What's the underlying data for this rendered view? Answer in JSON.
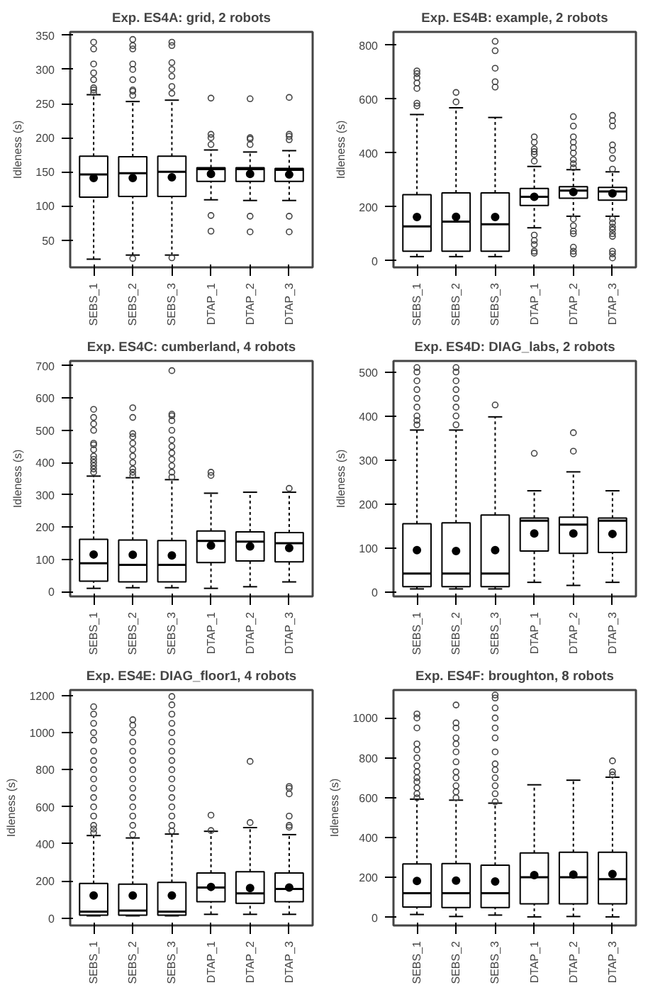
{
  "chart_data": [
    {
      "type": "box",
      "title": "Exp. ES4A: grid, 2 robots",
      "ylabel": "Idleness (s)",
      "categories": [
        "SEBS_1",
        "SEBS_2",
        "SEBS_3",
        "DTAP_1",
        "DTAP_2",
        "DTAP_3"
      ],
      "ylim": [
        10,
        355
      ],
      "yticks": [
        50,
        100,
        150,
        200,
        250,
        300,
        350
      ],
      "grid": false,
      "boxes": [
        {
          "low": 22,
          "q1": 113,
          "median": 146,
          "q3": 173,
          "high": 263,
          "mean": 141,
          "outliers": [
            266,
            270,
            273,
            285,
            295,
            308,
            330,
            340
          ]
        },
        {
          "low": 28,
          "q1": 114,
          "median": 148,
          "q3": 172,
          "high": 253,
          "mean": 141,
          "outliers": [
            23,
            262,
            268,
            270,
            285,
            300,
            308,
            330,
            335,
            344
          ]
        },
        {
          "low": 28,
          "q1": 114,
          "median": 150,
          "q3": 173,
          "high": 255,
          "mean": 142,
          "outliers": [
            24,
            265,
            275,
            290,
            300,
            310,
            335,
            340
          ]
        },
        {
          "low": 109,
          "q1": 136,
          "median": 154,
          "q3": 156,
          "high": 182,
          "mean": 147,
          "outliers": [
            63,
            86,
            190,
            200,
            205,
            258
          ]
        },
        {
          "low": 108,
          "q1": 136,
          "median": 154,
          "q3": 156,
          "high": 179,
          "mean": 147,
          "outliers": [
            62,
            85,
            190,
            198,
            200,
            257
          ]
        },
        {
          "low": 108,
          "q1": 136,
          "median": 153,
          "q3": 155,
          "high": 181,
          "mean": 146,
          "outliers": [
            62,
            85,
            197,
            202,
            205,
            259
          ]
        }
      ]
    },
    {
      "type": "box",
      "title": "Exp. ES4B: example, 2 robots",
      "ylabel": "Idleness (s)",
      "categories": [
        "SEBS_1",
        "SEBS_2",
        "SEBS_3",
        "DTAP_1",
        "DTAP_2",
        "DTAP_3"
      ],
      "ylim": [
        -25,
        850
      ],
      "yticks": [
        0,
        200,
        400,
        600,
        800
      ],
      "grid": false,
      "boxes": [
        {
          "low": 15,
          "q1": 35,
          "median": 127,
          "q3": 245,
          "high": 543,
          "mean": 162,
          "outliers": [
            575,
            585,
            640,
            660,
            680,
            695,
            705
          ]
        },
        {
          "low": 15,
          "q1": 35,
          "median": 145,
          "q3": 252,
          "high": 568,
          "mean": 163,
          "outliers": [
            590,
            625
          ]
        },
        {
          "low": 15,
          "q1": 35,
          "median": 135,
          "q3": 252,
          "high": 532,
          "mean": 162,
          "outliers": [
            645,
            665,
            715,
            780,
            815
          ]
        },
        {
          "low": 122,
          "q1": 205,
          "median": 237,
          "q3": 268,
          "high": 350,
          "mean": 237,
          "outliers": [
            28,
            35,
            60,
            75,
            95,
            370,
            395,
            405,
            415,
            440,
            460
          ]
        },
        {
          "low": 165,
          "q1": 232,
          "median": 260,
          "q3": 275,
          "high": 338,
          "mean": 255,
          "outliers": [
            25,
            35,
            50,
            100,
            110,
            130,
            155,
            345,
            360,
            375,
            400,
            420,
            440,
            460,
            500,
            535
          ]
        },
        {
          "low": 165,
          "q1": 225,
          "median": 257,
          "q3": 272,
          "high": 330,
          "mean": 250,
          "outliers": [
            10,
            25,
            35,
            90,
            100,
            115,
            125,
            140,
            155,
            340,
            380,
            410,
            430,
            500,
            520,
            540
          ]
        }
      ]
    },
    {
      "type": "box",
      "title": "Exp. ES4C: cumberland, 4 robots",
      "ylabel": "Idleness (s)",
      "categories": [
        "SEBS_1",
        "SEBS_2",
        "SEBS_3",
        "DTAP_1",
        "DTAP_2",
        "DTAP_3"
      ],
      "ylim": [
        -15,
        715
      ],
      "yticks": [
        0,
        100,
        200,
        300,
        400,
        500,
        600,
        700
      ],
      "grid": false,
      "boxes": [
        {
          "low": 10,
          "q1": 32,
          "median": 88,
          "q3": 162,
          "high": 358,
          "mean": 115,
          "outliers": [
            370,
            380,
            390,
            400,
            410,
            420,
            440,
            455,
            460,
            500,
            520,
            540,
            565
          ]
        },
        {
          "low": 12,
          "q1": 30,
          "median": 83,
          "q3": 160,
          "high": 353,
          "mean": 114,
          "outliers": [
            360,
            370,
            380,
            400,
            420,
            440,
            460,
            480,
            490,
            540,
            570
          ]
        },
        {
          "low": 12,
          "q1": 30,
          "median": 83,
          "q3": 158,
          "high": 347,
          "mean": 112,
          "outliers": [
            355,
            370,
            390,
            410,
            430,
            450,
            470,
            500,
            530,
            545,
            550,
            685
          ]
        },
        {
          "low": 10,
          "q1": 90,
          "median": 157,
          "q3": 188,
          "high": 305,
          "mean": 143,
          "outliers": [
            360,
            370
          ]
        },
        {
          "low": 15,
          "q1": 95,
          "median": 155,
          "q3": 185,
          "high": 308,
          "mean": 140
        },
        {
          "low": 30,
          "q1": 92,
          "median": 150,
          "q3": 183,
          "high": 308,
          "mean": 135,
          "outliers": [
            320
          ]
        }
      ]
    },
    {
      "type": "box",
      "title": "Exp. ES4D: DIAG_labs, 2 robots",
      "ylabel": "Idleness (s)",
      "categories": [
        "SEBS_1",
        "SEBS_2",
        "SEBS_3",
        "DTAP_1",
        "DTAP_2",
        "DTAP_3"
      ],
      "ylim": [
        -10,
        525
      ],
      "yticks": [
        0,
        100,
        200,
        300,
        400,
        500
      ],
      "grid": false,
      "boxes": [
        {
          "low": 7,
          "q1": 12,
          "median": 42,
          "q3": 155,
          "high": 368,
          "mean": 95,
          "outliers": [
            380,
            390,
            400,
            420,
            440,
            460,
            480,
            500,
            510
          ]
        },
        {
          "low": 7,
          "q1": 12,
          "median": 42,
          "q3": 157,
          "high": 368,
          "mean": 93,
          "outliers": [
            380,
            400,
            420,
            440,
            460,
            480,
            500,
            510
          ]
        },
        {
          "low": 7,
          "q1": 12,
          "median": 42,
          "q3": 175,
          "high": 398,
          "mean": 95,
          "outliers": [
            425
          ]
        },
        {
          "low": 22,
          "q1": 93,
          "median": 162,
          "q3": 168,
          "high": 230,
          "mean": 133,
          "outliers": [
            315
          ]
        },
        {
          "low": 15,
          "q1": 88,
          "median": 153,
          "q3": 170,
          "high": 273,
          "mean": 133,
          "outliers": [
            320,
            362
          ]
        },
        {
          "low": 22,
          "q1": 90,
          "median": 162,
          "q3": 168,
          "high": 230,
          "mean": 132
        }
      ]
    },
    {
      "type": "box",
      "title": "Exp. ES4E: DIAG_floor1, 4 robots",
      "ylabel": "Idleness (s)",
      "categories": [
        "SEBS_1",
        "SEBS_2",
        "SEBS_3",
        "DTAP_1",
        "DTAP_2",
        "DTAP_3"
      ],
      "ylim": [
        -40,
        1230
      ],
      "yticks": [
        0,
        200,
        400,
        600,
        800,
        1000,
        1200
      ],
      "grid": false,
      "boxes": [
        {
          "low": 12,
          "q1": 15,
          "median": 35,
          "q3": 187,
          "high": 445,
          "mean": 122,
          "outliers": [
            460,
            480,
            500,
            550,
            600,
            650,
            700,
            750,
            800,
            850,
            900,
            960,
            1000,
            1050,
            1100,
            1140
          ]
        },
        {
          "low": 12,
          "q1": 15,
          "median": 40,
          "q3": 183,
          "high": 432,
          "mean": 122,
          "outliers": [
            450,
            500,
            550,
            600,
            650,
            700,
            750,
            800,
            850,
            900,
            950,
            1000,
            1040,
            1070
          ]
        },
        {
          "low": 12,
          "q1": 15,
          "median": 35,
          "q3": 192,
          "high": 453,
          "mean": 122,
          "outliers": [
            470,
            500,
            550,
            600,
            650,
            700,
            750,
            800,
            850,
            900,
            950,
            1000,
            1050,
            1100,
            1150,
            1195
          ]
        },
        {
          "low": 20,
          "q1": 88,
          "median": 165,
          "q3": 243,
          "high": 468,
          "mean": 168,
          "outliers": [
            472,
            555
          ]
        },
        {
          "low": 20,
          "q1": 80,
          "median": 133,
          "q3": 250,
          "high": 488,
          "mean": 162,
          "outliers": [
            515,
            845
          ]
        },
        {
          "low": 20,
          "q1": 88,
          "median": 157,
          "q3": 243,
          "high": 450,
          "mean": 165,
          "outliers": [
            490,
            500,
            550,
            670,
            700,
            710
          ]
        }
      ]
    },
    {
      "type": "box",
      "title": "Exp. ES4F: broughton, 8 robots",
      "ylabel": "Idleness (s)",
      "categories": [
        "SEBS_1",
        "SEBS_2",
        "SEBS_3",
        "DTAP_1",
        "DTAP_2",
        "DTAP_3"
      ],
      "ylim": [
        -40,
        1140
      ],
      "yticks": [
        0,
        200,
        400,
        600,
        800,
        1000
      ],
      "grid": false,
      "boxes": [
        {
          "low": 15,
          "q1": 52,
          "median": 122,
          "q3": 268,
          "high": 593,
          "mean": 183,
          "outliers": [
            600,
            620,
            650,
            680,
            700,
            730,
            760,
            800,
            840,
            870,
            950,
            1000,
            1020
          ]
        },
        {
          "low": 5,
          "q1": 50,
          "median": 122,
          "q3": 270,
          "high": 588,
          "mean": 185,
          "outliers": [
            600,
            630,
            660,
            700,
            730,
            780,
            830,
            870,
            900,
            950,
            975,
            1065
          ]
        },
        {
          "low": 12,
          "q1": 50,
          "median": 122,
          "q3": 262,
          "high": 573,
          "mean": 180,
          "outliers": [
            580,
            620,
            660,
            700,
            740,
            770,
            830,
            900,
            950,
            1000,
            1050,
            1100,
            1115
          ]
        },
        {
          "low": 3,
          "q1": 68,
          "median": 202,
          "q3": 323,
          "high": 665,
          "mean": 212
        },
        {
          "low": 5,
          "q1": 68,
          "median": 202,
          "q3": 327,
          "high": 688,
          "mean": 215
        },
        {
          "low": 3,
          "q1": 68,
          "median": 192,
          "q3": 327,
          "high": 703,
          "mean": 218,
          "outliers": [
            715,
            730,
            785
          ]
        }
      ]
    }
  ]
}
